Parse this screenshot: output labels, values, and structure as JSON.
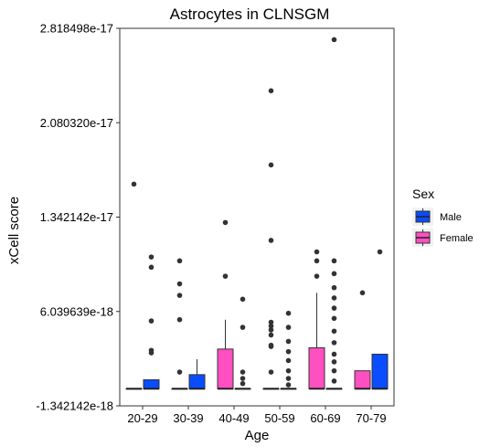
{
  "chart_data": {
    "type": "box",
    "title": "Astrocytes in CLNSGM",
    "xlabel": "Age",
    "ylabel": "xCell score",
    "categories": [
      "20-29",
      "30-39",
      "40-49",
      "50-59",
      "60-69",
      "70-79"
    ],
    "ylim": [
      -1.342142e-18,
      2.818498e-17
    ],
    "yticks": [
      -1.342142e-18,
      6.039639e-18,
      1.342142e-17,
      2.08032e-17,
      2.818498e-17
    ],
    "ytick_labels": [
      "-1.342142e-18",
      "6.039639e-18",
      "1.342142e-17",
      "2.080320e-17",
      "2.818498e-17"
    ],
    "grid": false,
    "legend": {
      "title": "Sex",
      "position": "right"
    },
    "series": [
      {
        "name": "Female",
        "color": "#FF4FC1",
        "boxes": [
          {
            "category": "20-29",
            "q1": 0,
            "median": 0,
            "q3": 0,
            "whisker_low": 0,
            "whisker_high": 0,
            "outliers": [
              1.6e-17
            ]
          },
          {
            "category": "30-39",
            "q1": 0,
            "median": 0,
            "q3": 0,
            "whisker_low": 0,
            "whisker_high": 0,
            "outliers": [
              1.3e-18,
              5.4e-18,
              7.3e-18,
              8.2e-18,
              1e-17
            ]
          },
          {
            "category": "40-49",
            "q1": 0,
            "median": 0,
            "q3": 3.1e-18,
            "whisker_low": 0,
            "whisker_high": 5.4e-18,
            "outliers": [
              8.8e-18,
              1.3e-17
            ]
          },
          {
            "category": "50-59",
            "q1": 0,
            "median": 0,
            "q3": 0,
            "whisker_low": 0,
            "whisker_high": 0,
            "outliers": [
              1.3e-18,
              3.3e-18,
              3.4e-18,
              4.2e-18,
              4.6e-18,
              4.9e-18,
              5.2e-18,
              1.16e-17,
              1.75e-17,
              2.33e-17
            ]
          },
          {
            "category": "60-69",
            "q1": 0,
            "median": 0,
            "q3": 3.2e-18,
            "whisker_low": 0,
            "whisker_high": 7.5e-18,
            "outliers": [
              8.8e-18,
              1e-17,
              1.07e-17
            ]
          },
          {
            "category": "70-79",
            "q1": 0,
            "median": 0,
            "q3": 1.4e-18,
            "whisker_low": 0,
            "whisker_high": 1.4e-18,
            "outliers": [
              7.5e-18
            ]
          }
        ]
      },
      {
        "name": "Male",
        "color": "#0A4CFF",
        "boxes": [
          {
            "category": "20-29",
            "q1": 0,
            "median": 0,
            "q3": 7e-19,
            "whisker_low": 0,
            "whisker_high": 7e-19,
            "outliers": [
              2.8e-18,
              3e-18,
              5.3e-18,
              9.5e-18,
              1.03e-17
            ]
          },
          {
            "category": "30-39",
            "q1": 0,
            "median": 0,
            "q3": 1.1e-18,
            "whisker_low": 0,
            "whisker_high": 2.3e-18,
            "outliers": []
          },
          {
            "category": "40-49",
            "q1": 0,
            "median": 0,
            "q3": 0,
            "whisker_low": 0,
            "whisker_high": 0,
            "outliers": [
              4e-19,
              8e-19,
              1.3e-18,
              4.8e-18,
              7e-18
            ]
          },
          {
            "category": "50-59",
            "q1": 0,
            "median": 0,
            "q3": 0,
            "whisker_low": 0,
            "whisker_high": 0,
            "outliers": [
              3e-19,
              8e-19,
              1.4e-18,
              2.2e-18,
              2.9e-18,
              3.7e-18,
              4.8e-18,
              5.9e-18
            ]
          },
          {
            "category": "60-69",
            "q1": 0,
            "median": 0,
            "q3": 0,
            "whisker_low": 0,
            "whisker_high": 0,
            "outliers": [
              6e-19,
              1.4e-18,
              2.1e-18,
              2.7e-18,
              3.6e-18,
              4.5e-18,
              5.5e-18,
              6.3e-18,
              7.1e-18,
              7.9e-18,
              9e-18,
              1e-17,
              2.73e-17
            ]
          },
          {
            "category": "70-79",
            "q1": 0,
            "median": 0,
            "q3": 2.7e-18,
            "whisker_low": 0,
            "whisker_high": 2.7e-18,
            "outliers": [
              1.07e-17
            ]
          }
        ]
      }
    ]
  }
}
